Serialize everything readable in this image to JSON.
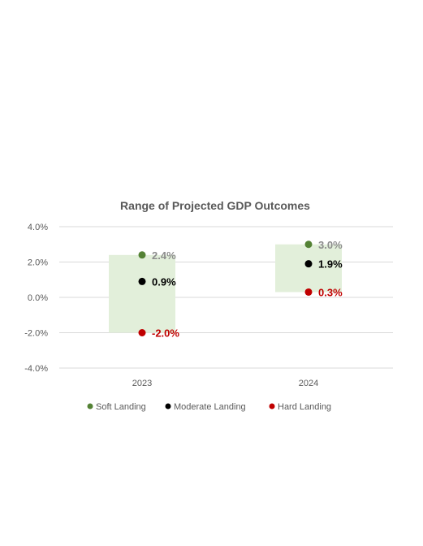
{
  "chart_data": {
    "type": "scatter",
    "title": "Range of Projected GDP Outcomes",
    "categories": [
      "2023",
      "2024"
    ],
    "ylim": [
      -4.0,
      4.0
    ],
    "yticks": [
      "4.0%",
      "2.0%",
      "0.0%",
      "-2.0%",
      "-4.0%"
    ],
    "ytick_values": [
      4.0,
      2.0,
      0.0,
      -2.0,
      -4.0
    ],
    "grid": true,
    "legend_position": "bottom",
    "range_band_color": "#e2efda",
    "series": [
      {
        "name": "Soft Landing",
        "color": "#548235",
        "label_color": "#8c8c8c",
        "values": [
          2.4,
          3.0
        ],
        "labels": [
          "2.4%",
          "3.0%"
        ]
      },
      {
        "name": "Moderate Landing",
        "color": "#000000",
        "label_color": "#000000",
        "values": [
          0.9,
          1.9
        ],
        "labels": [
          "0.9%",
          "1.9%"
        ]
      },
      {
        "name": "Hard Landing",
        "color": "#c00000",
        "label_color": "#c00000",
        "values": [
          -2.0,
          0.3
        ],
        "labels": [
          "-2.0%",
          "0.3%"
        ]
      }
    ]
  }
}
